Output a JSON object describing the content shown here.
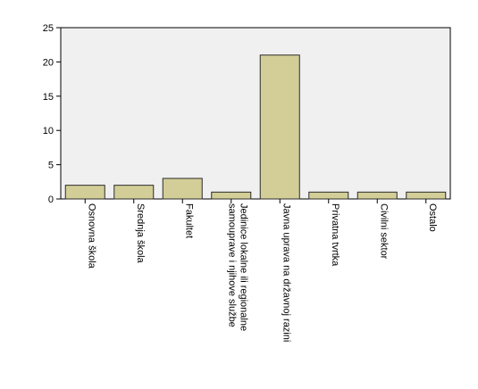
{
  "chart_data": {
    "type": "bar",
    "categories": [
      "Osnovna škola",
      "Srednja škola",
      "Fakultet",
      [
        "Jedinice lokalne ili regionalne",
        "samouprave i njihove službe"
      ],
      "Javna uprava na državnoj razini",
      "Privatna tvrtka",
      "Civilni sektor",
      "Ostalo"
    ],
    "values": [
      2,
      2,
      3,
      1,
      21,
      1,
      1,
      1
    ],
    "title": "",
    "xlabel": "",
    "ylabel": "",
    "ylim": [
      0,
      25
    ],
    "yticks": [
      0,
      5,
      10,
      15,
      20,
      25
    ],
    "grid": false,
    "colors": {
      "bar_fill": "#d3ce97",
      "bar_stroke": "#2b2b2b",
      "plot_background": "#f0f0f0",
      "axis": "#000000"
    }
  }
}
